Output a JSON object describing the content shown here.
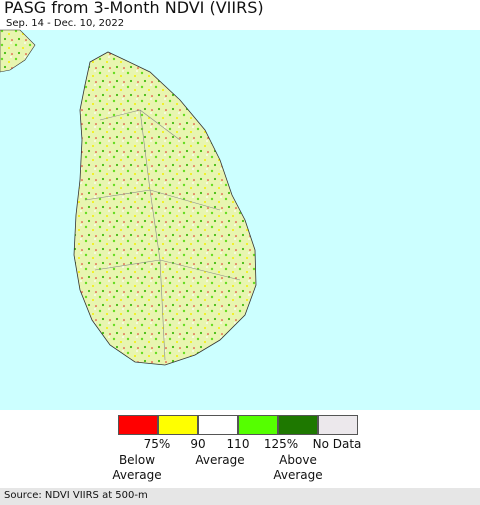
{
  "header": {
    "title": "PASG from 3-Month NDVI (VIIRS)",
    "subtitle": "Sep. 14 - Dec. 10, 2022"
  },
  "legend": {
    "colors": [
      "#ff0000",
      "#ffff00",
      "#ffffff",
      "#55ff00",
      "#1e7800",
      "#ece8ec"
    ],
    "tick_labels": [
      "75%",
      "90",
      "110",
      "125%",
      "No Data"
    ],
    "group_labels": [
      "Below Average",
      "Average",
      "Above Average"
    ]
  },
  "footer": {
    "source": "Source: NDVI VIIRS at 500-m"
  }
}
